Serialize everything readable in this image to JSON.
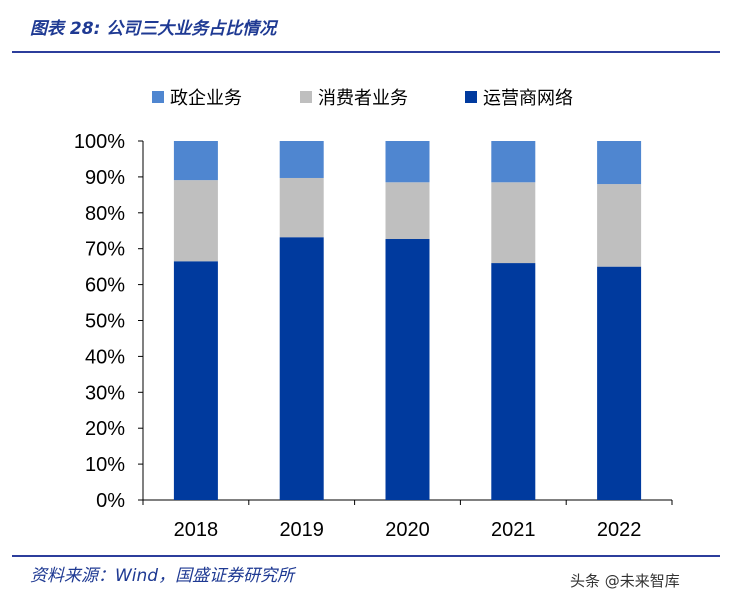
{
  "figure": {
    "title": "图表 28:  公司三大业务占比情况",
    "source": "资料来源：Wind，国盛证券研究所",
    "watermark": "头条 @未来智库"
  },
  "chart_data": {
    "type": "bar",
    "stacked": true,
    "categories": [
      "2018",
      "2019",
      "2020",
      "2021",
      "2022"
    ],
    "series": [
      {
        "name": "运营商网络",
        "color": "#003a9e",
        "values": [
          66.5,
          73.2,
          72.7,
          66.0,
          65.0
        ]
      },
      {
        "name": "消费者业务",
        "color": "#bfbfbf",
        "values": [
          22.6,
          16.5,
          15.8,
          22.5,
          23.0
        ]
      },
      {
        "name": "政企业务",
        "color": "#4f86d0",
        "values": [
          10.9,
          10.3,
          11.5,
          11.5,
          12.0
        ]
      }
    ],
    "legend_order": [
      "政企业务",
      "消费者业务",
      "运营商网络"
    ],
    "legend_position": "top",
    "ylim": [
      0,
      100
    ],
    "yticks": [
      "0%",
      "10%",
      "20%",
      "30%",
      "40%",
      "50%",
      "60%",
      "70%",
      "80%",
      "90%",
      "100%"
    ],
    "grid": false
  }
}
